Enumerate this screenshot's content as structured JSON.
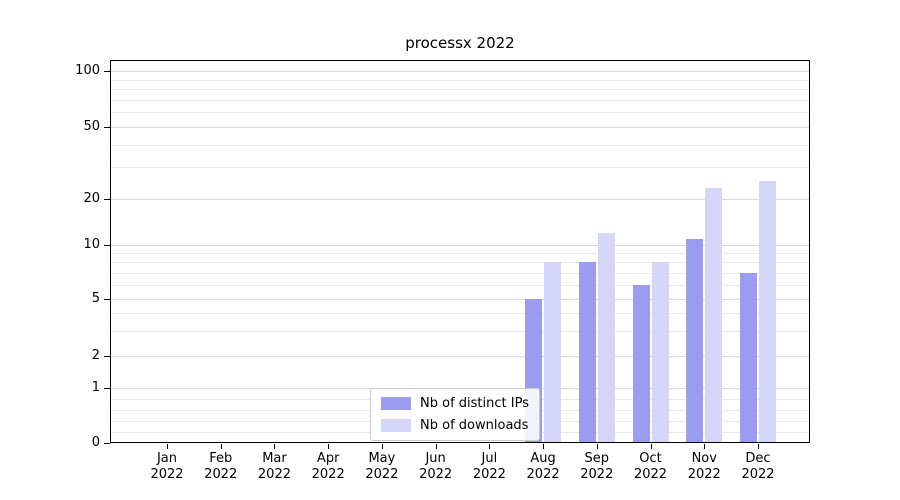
{
  "title": "processx 2022",
  "colors": {
    "bar_distinct_ips": "#9b9bef",
    "bar_downloads": "#d6d6f9",
    "grid_major": "#d8d8d8",
    "grid_minor": "#e8e8e8",
    "axis": "#000000",
    "legend_border": "#cccccc"
  },
  "chart_data": {
    "type": "bar",
    "title": "processx 2022",
    "categories": [
      "Jan 2022",
      "Feb 2022",
      "Mar 2022",
      "Apr 2022",
      "May 2022",
      "Jun 2022",
      "Jul 2022",
      "Aug 2022",
      "Sep 2022",
      "Oct 2022",
      "Nov 2022",
      "Dec 2022"
    ],
    "series": [
      {
        "name": "Nb of distinct IPs",
        "color": "#9b9bef",
        "values": [
          0,
          0,
          0,
          0,
          0,
          0,
          0,
          5,
          8,
          6,
          11,
          7
        ]
      },
      {
        "name": "Nb of downloads",
        "color": "#d6d6f9",
        "values": [
          0,
          0,
          0,
          0,
          0,
          0,
          0,
          8,
          12,
          8,
          23,
          25
        ]
      }
    ],
    "xlabel": "",
    "ylabel": "",
    "yscale": "symlog",
    "yticks": [
      0,
      1,
      2,
      5,
      10,
      20,
      50,
      100
    ],
    "yticks_minor": [
      0.2,
      0.4,
      0.6,
      0.8,
      3,
      4,
      6,
      7,
      8,
      9,
      30,
      40,
      60,
      70,
      80,
      90
    ],
    "ylim": [
      0,
      140
    ],
    "grid": true,
    "legend_position": "lower center"
  }
}
